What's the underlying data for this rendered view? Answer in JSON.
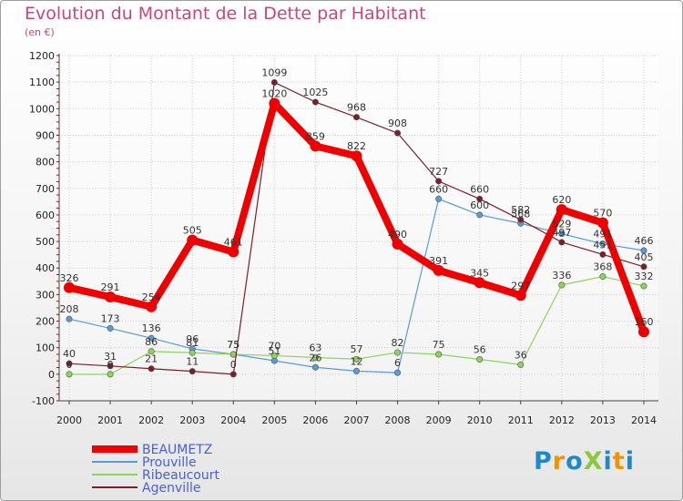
{
  "title": "Evolution du Montant de la Dette par Habitant",
  "unit_label": "(en €)",
  "logo_text": "ProXiti",
  "chart_data": {
    "type": "line",
    "title": "Evolution du Montant de la Dette par Habitant",
    "ylabel": "(en €)",
    "xlabel": "",
    "ylim": [
      -100,
      1200
    ],
    "yticks": [
      -100,
      0,
      100,
      200,
      300,
      400,
      500,
      600,
      700,
      800,
      900,
      1000,
      1100,
      1200
    ],
    "x": [
      "2000",
      "2001",
      "2002",
      "2003",
      "2004",
      "2005",
      "2006",
      "2007",
      "2008",
      "2009",
      "2010",
      "2011",
      "2012",
      "2013",
      "2014"
    ],
    "grid": true,
    "legend_position": "bottom-left",
    "series": [
      {
        "name": "BEAUMETZ",
        "color": "#ee0000",
        "values": [
          326,
          291,
          254,
          505,
          461,
          1020,
          859,
          822,
          490,
          391,
          345,
          297,
          620,
          570,
          160
        ]
      },
      {
        "name": "Prouville",
        "color": "#5b9bd5",
        "values": [
          208,
          173,
          136,
          96,
          75,
          51,
          26,
          12,
          6,
          660,
          600,
          568,
          529,
          491,
          466
        ]
      },
      {
        "name": "Ribeaucourt",
        "color": "#8ed35a",
        "values": [
          0,
          0,
          86,
          81,
          75,
          70,
          63,
          57,
          82,
          75,
          56,
          36,
          336,
          368,
          332
        ]
      },
      {
        "name": "Agenville",
        "color": "#7a1f2a",
        "values": [
          40,
          31,
          21,
          11,
          0,
          1099,
          1025,
          968,
          908,
          727,
          660,
          582,
          497,
          451,
          405
        ]
      }
    ]
  }
}
